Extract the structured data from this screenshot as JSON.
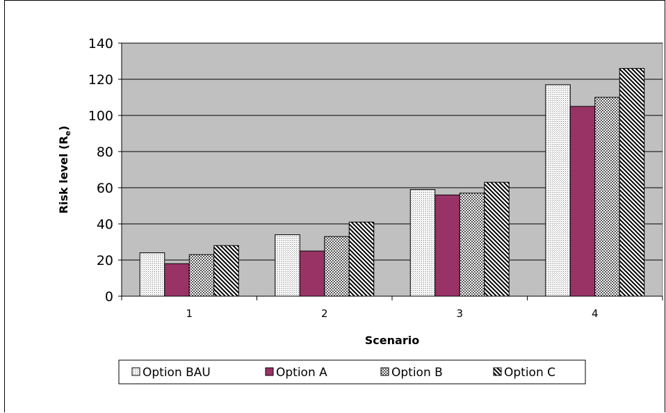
{
  "chart_data": {
    "type": "bar",
    "categories": [
      "1",
      "2",
      "3",
      "4"
    ],
    "series": [
      {
        "name": "Option BAU",
        "values": [
          24,
          34,
          59,
          117
        ],
        "pattern": "dots",
        "color": "#ffffff"
      },
      {
        "name": "Option A",
        "values": [
          18,
          25,
          56,
          105
        ],
        "pattern": "solid",
        "color": "#993366"
      },
      {
        "name": "Option B",
        "values": [
          23,
          33,
          57,
          110
        ],
        "pattern": "checker",
        "color": "#ffffff"
      },
      {
        "name": "Option C",
        "values": [
          28,
          41,
          63,
          126
        ],
        "pattern": "diagonal",
        "color": "#ffffff"
      }
    ],
    "xlabel": "Scenario",
    "ylabel": "Risk level (R",
    "ylabel_sub": "e",
    "ylabel_close": ")",
    "ylim": [
      0,
      140
    ],
    "yticks": [
      "0",
      "20",
      "40",
      "60",
      "80",
      "100",
      "120",
      "140"
    ],
    "grid": true,
    "legend_position": "bottom",
    "plot_background": "#c0c0c0"
  }
}
